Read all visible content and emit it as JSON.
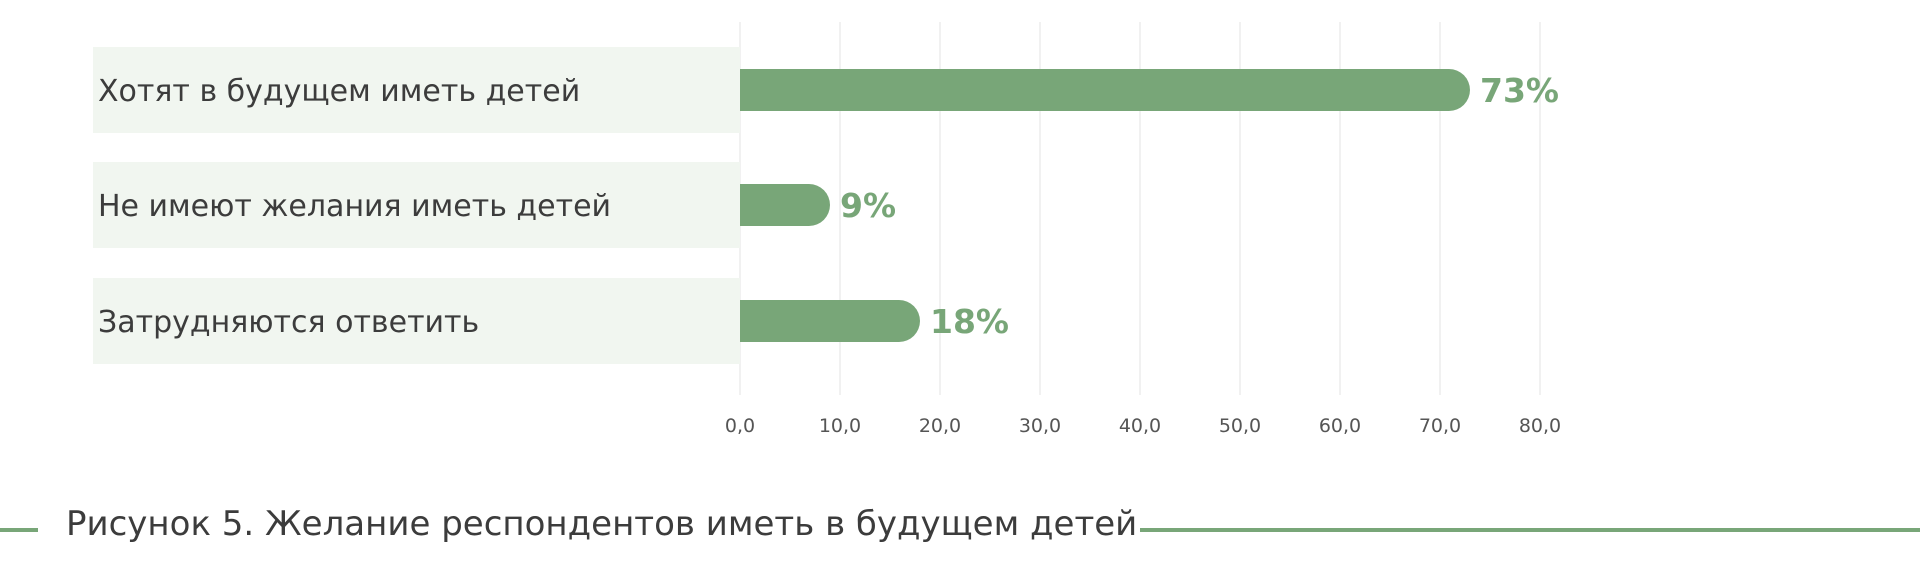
{
  "caption": "Рисунок 5. Желание респондентов иметь в будущем детей",
  "colors": {
    "bar": "#78a678",
    "label_background": "#f1f6f0",
    "text": "#3c3c3c",
    "rule": "#78a678"
  },
  "chart_data": {
    "type": "bar",
    "orientation": "horizontal",
    "categories": [
      "Хотят в будущем иметь детей",
      "Не имеют желания иметь детей",
      "Затрудняются ответить"
    ],
    "values": [
      73,
      9,
      18
    ],
    "value_labels": [
      "73%",
      "9%",
      "18%"
    ],
    "xlim": [
      0,
      80
    ],
    "x_ticks": [
      0,
      10,
      20,
      30,
      40,
      50,
      60,
      70,
      80
    ],
    "x_tick_labels": [
      "0,0",
      "10,0",
      "20,0",
      "30,0",
      "40,0",
      "50,0",
      "60,0",
      "70,0",
      "80,0"
    ],
    "grid": true,
    "legend": "none"
  }
}
